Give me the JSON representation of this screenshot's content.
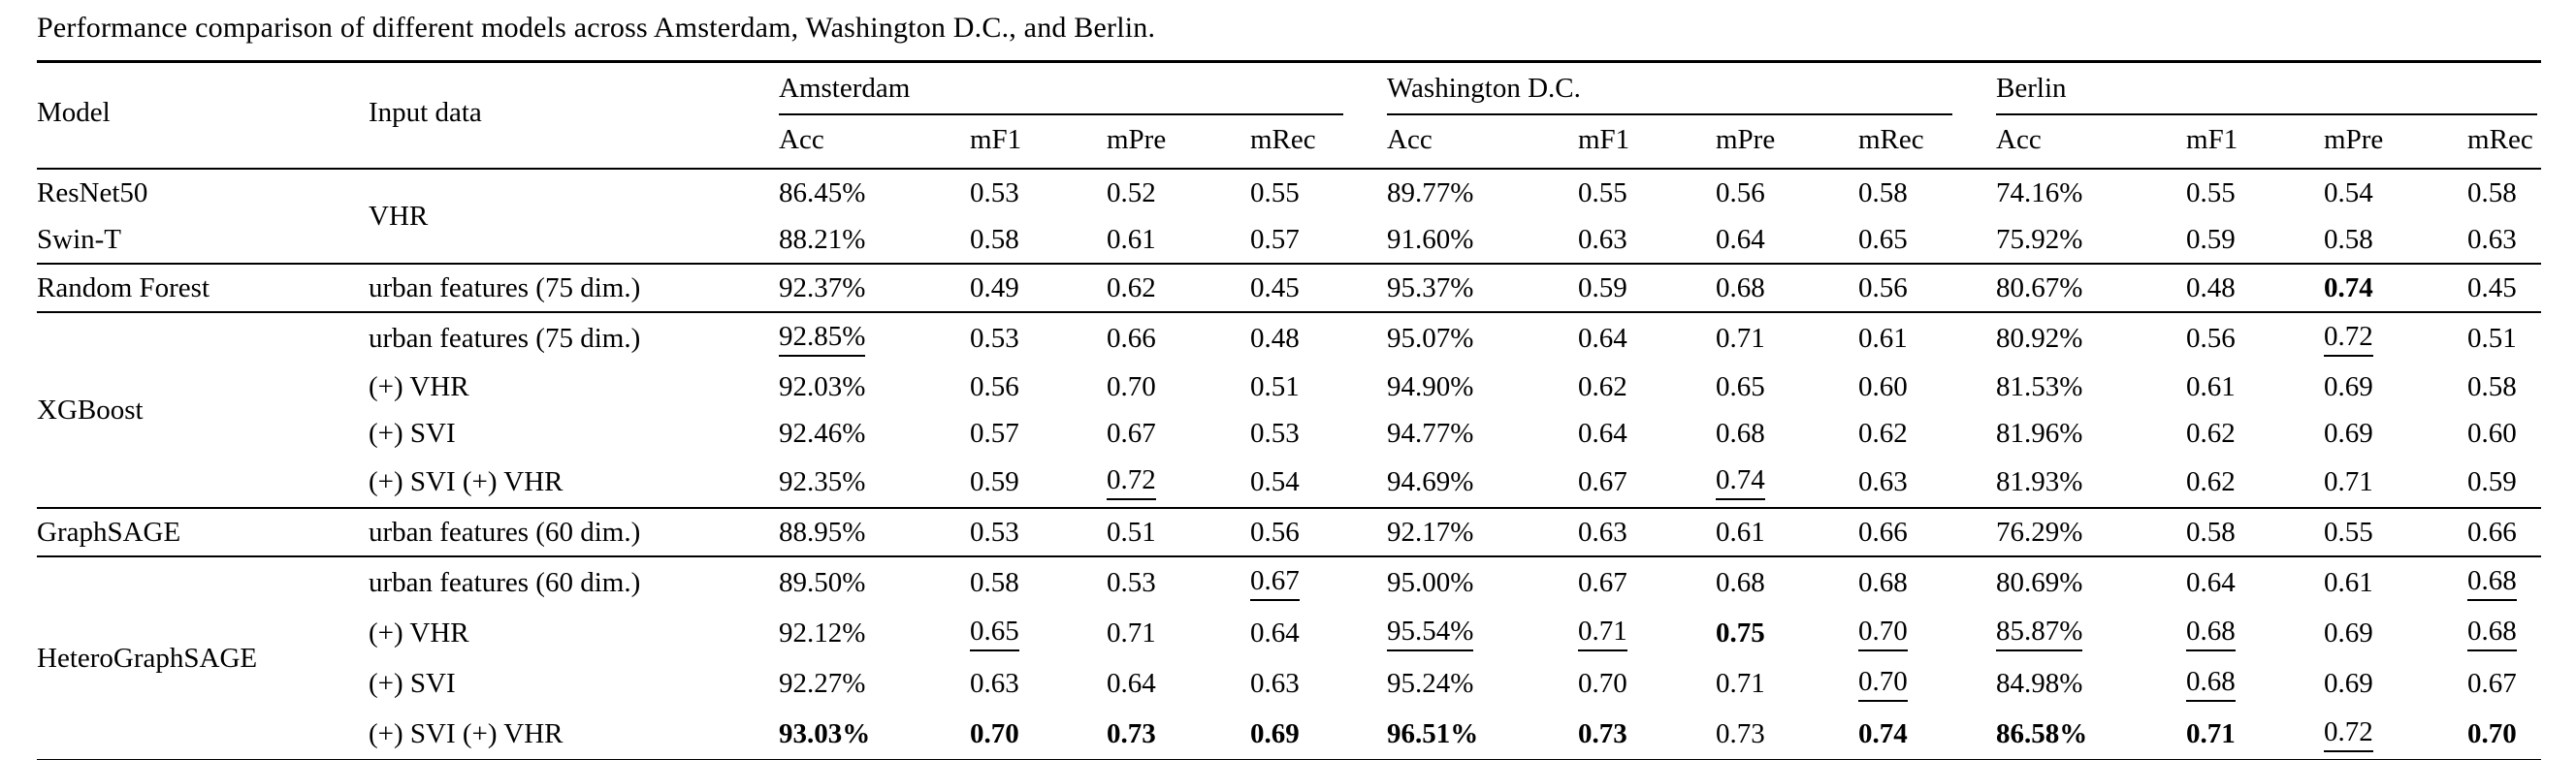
{
  "title": "Performance comparison of different models across Amsterdam, Washington D.C., and Berlin.",
  "table": {
    "model_header": "Model",
    "input_header": "Input data",
    "cities": [
      "Amsterdam",
      "Washington D.C.",
      "Berlin"
    ],
    "metrics": [
      "Acc",
      "mF1",
      "mPre",
      "mRec"
    ],
    "groups": [
      {
        "input": "VHR",
        "rows": [
          {
            "model": "ResNet50",
            "values": [
              [
                "86.45%",
                ""
              ],
              [
                "0.53",
                ""
              ],
              [
                "0.52",
                ""
              ],
              [
                "0.55",
                ""
              ],
              [
                "89.77%",
                ""
              ],
              [
                "0.55",
                ""
              ],
              [
                "0.56",
                ""
              ],
              [
                "0.58",
                ""
              ],
              [
                "74.16%",
                ""
              ],
              [
                "0.55",
                ""
              ],
              [
                "0.54",
                ""
              ],
              [
                "0.58",
                ""
              ]
            ]
          },
          {
            "model": "Swin-T",
            "values": [
              [
                "88.21%",
                ""
              ],
              [
                "0.58",
                ""
              ],
              [
                "0.61",
                ""
              ],
              [
                "0.57",
                ""
              ],
              [
                "91.60%",
                ""
              ],
              [
                "0.63",
                ""
              ],
              [
                "0.64",
                ""
              ],
              [
                "0.65",
                ""
              ],
              [
                "75.92%",
                ""
              ],
              [
                "0.59",
                ""
              ],
              [
                "0.58",
                ""
              ],
              [
                "0.63",
                ""
              ]
            ]
          }
        ]
      },
      {
        "model": "Random Forest",
        "rows": [
          {
            "input": "urban features (75 dim.)",
            "values": [
              [
                "92.37%",
                ""
              ],
              [
                "0.49",
                ""
              ],
              [
                "0.62",
                ""
              ],
              [
                "0.45",
                ""
              ],
              [
                "95.37%",
                ""
              ],
              [
                "0.59",
                ""
              ],
              [
                "0.68",
                ""
              ],
              [
                "0.56",
                ""
              ],
              [
                "80.67%",
                ""
              ],
              [
                "0.48",
                ""
              ],
              [
                "0.74",
                "b"
              ],
              [
                "0.45",
                ""
              ]
            ]
          }
        ]
      },
      {
        "model": "XGBoost",
        "rows": [
          {
            "input": "urban features (75 dim.)",
            "values": [
              [
                "92.85%",
                "u"
              ],
              [
                "0.53",
                ""
              ],
              [
                "0.66",
                ""
              ],
              [
                "0.48",
                ""
              ],
              [
                "95.07%",
                ""
              ],
              [
                "0.64",
                ""
              ],
              [
                "0.71",
                ""
              ],
              [
                "0.61",
                ""
              ],
              [
                "80.92%",
                ""
              ],
              [
                "0.56",
                ""
              ],
              [
                "0.72",
                "u"
              ],
              [
                "0.51",
                ""
              ]
            ]
          },
          {
            "input": "(+) VHR",
            "values": [
              [
                "92.03%",
                ""
              ],
              [
                "0.56",
                ""
              ],
              [
                "0.70",
                ""
              ],
              [
                "0.51",
                ""
              ],
              [
                "94.90%",
                ""
              ],
              [
                "0.62",
                ""
              ],
              [
                "0.65",
                ""
              ],
              [
                "0.60",
                ""
              ],
              [
                "81.53%",
                ""
              ],
              [
                "0.61",
                ""
              ],
              [
                "0.69",
                ""
              ],
              [
                "0.58",
                ""
              ]
            ]
          },
          {
            "input": "(+) SVI",
            "values": [
              [
                "92.46%",
                ""
              ],
              [
                "0.57",
                ""
              ],
              [
                "0.67",
                ""
              ],
              [
                "0.53",
                ""
              ],
              [
                "94.77%",
                ""
              ],
              [
                "0.64",
                ""
              ],
              [
                "0.68",
                ""
              ],
              [
                "0.62",
                ""
              ],
              [
                "81.96%",
                ""
              ],
              [
                "0.62",
                ""
              ],
              [
                "0.69",
                ""
              ],
              [
                "0.60",
                ""
              ]
            ]
          },
          {
            "input": "(+) SVI (+) VHR",
            "values": [
              [
                "92.35%",
                ""
              ],
              [
                "0.59",
                ""
              ],
              [
                "0.72",
                "u"
              ],
              [
                "0.54",
                ""
              ],
              [
                "94.69%",
                ""
              ],
              [
                "0.67",
                ""
              ],
              [
                "0.74",
                "u"
              ],
              [
                "0.63",
                ""
              ],
              [
                "81.93%",
                ""
              ],
              [
                "0.62",
                ""
              ],
              [
                "0.71",
                ""
              ],
              [
                "0.59",
                ""
              ]
            ]
          }
        ]
      },
      {
        "model": "GraphSAGE",
        "rows": [
          {
            "input": "urban features (60 dim.)",
            "values": [
              [
                "88.95%",
                ""
              ],
              [
                "0.53",
                ""
              ],
              [
                "0.51",
                ""
              ],
              [
                "0.56",
                ""
              ],
              [
                "92.17%",
                ""
              ],
              [
                "0.63",
                ""
              ],
              [
                "0.61",
                ""
              ],
              [
                "0.66",
                ""
              ],
              [
                "76.29%",
                ""
              ],
              [
                "0.58",
                ""
              ],
              [
                "0.55",
                ""
              ],
              [
                "0.66",
                ""
              ]
            ]
          }
        ]
      },
      {
        "model": "HeteroGraphSAGE",
        "rows": [
          {
            "input": "urban features (60 dim.)",
            "values": [
              [
                "89.50%",
                ""
              ],
              [
                "0.58",
                ""
              ],
              [
                "0.53",
                ""
              ],
              [
                "0.67",
                "u"
              ],
              [
                "95.00%",
                ""
              ],
              [
                "0.67",
                ""
              ],
              [
                "0.68",
                ""
              ],
              [
                "0.68",
                ""
              ],
              [
                "80.69%",
                ""
              ],
              [
                "0.64",
                ""
              ],
              [
                "0.61",
                ""
              ],
              [
                "0.68",
                "u"
              ]
            ]
          },
          {
            "input": "(+) VHR",
            "values": [
              [
                "92.12%",
                ""
              ],
              [
                "0.65",
                "u"
              ],
              [
                "0.71",
                ""
              ],
              [
                "0.64",
                ""
              ],
              [
                "95.54%",
                "u"
              ],
              [
                "0.71",
                "u"
              ],
              [
                "0.75",
                "b"
              ],
              [
                "0.70",
                "u"
              ],
              [
                "85.87%",
                "u"
              ],
              [
                "0.68",
                "u"
              ],
              [
                "0.69",
                ""
              ],
              [
                "0.68",
                "u"
              ]
            ]
          },
          {
            "input": "(+) SVI",
            "values": [
              [
                "92.27%",
                ""
              ],
              [
                "0.63",
                ""
              ],
              [
                "0.64",
                ""
              ],
              [
                "0.63",
                ""
              ],
              [
                "95.24%",
                ""
              ],
              [
                "0.70",
                ""
              ],
              [
                "0.71",
                ""
              ],
              [
                "0.70",
                "u"
              ],
              [
                "84.98%",
                ""
              ],
              [
                "0.68",
                "u"
              ],
              [
                "0.69",
                ""
              ],
              [
                "0.67",
                ""
              ]
            ]
          },
          {
            "input": "(+) SVI (+) VHR",
            "values": [
              [
                "93.03%",
                "b"
              ],
              [
                "0.70",
                "b"
              ],
              [
                "0.73",
                "b"
              ],
              [
                "0.69",
                "b"
              ],
              [
                "96.51%",
                "b"
              ],
              [
                "0.73",
                "b"
              ],
              [
                "0.73",
                ""
              ],
              [
                "0.74",
                "b"
              ],
              [
                "86.58%",
                "b"
              ],
              [
                "0.71",
                "b"
              ],
              [
                "0.72",
                "u"
              ],
              [
                "0.70",
                "b"
              ]
            ]
          }
        ]
      }
    ]
  }
}
